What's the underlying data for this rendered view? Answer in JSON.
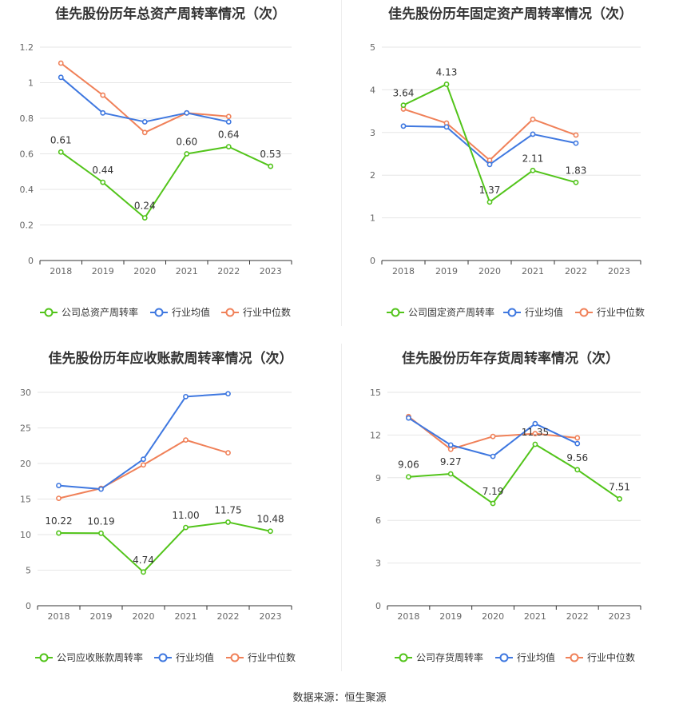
{
  "source": "数据来源：恒生聚源",
  "colors": {
    "company": "#52c41a",
    "avg": "#3f78e0",
    "median": "#f08159",
    "grid": "#e6e6e6",
    "axis": "#333333",
    "tick": "#666666"
  },
  "legend_labels": {
    "avg": "行业均值",
    "median": "行业中位数"
  },
  "chart_data": [
    {
      "type": "line",
      "title": "佳先股份历年总资产周转率情况（次）",
      "categories": [
        "2018",
        "2019",
        "2020",
        "2021",
        "2022",
        "2023"
      ],
      "ylim": [
        0,
        1.2
      ],
      "yticks": [
        "0",
        "0.2",
        "0.4",
        "0.6",
        "0.8",
        "1",
        "1.2"
      ],
      "series": [
        {
          "name": "公司总资产周转率",
          "values": [
            0.61,
            0.44,
            0.24,
            0.6,
            0.64,
            0.53
          ],
          "labels": [
            "0.61",
            "0.44",
            "0.24",
            "0.60",
            "0.64",
            "0.53"
          ]
        },
        {
          "name": "行业均值",
          "values": [
            1.03,
            0.83,
            0.78,
            0.83,
            0.78,
            null
          ]
        },
        {
          "name": "行业中位数",
          "values": [
            1.11,
            0.93,
            0.72,
            0.83,
            0.81,
            null
          ]
        }
      ]
    },
    {
      "type": "line",
      "title": "佳先股份历年固定资产周转率情况（次）",
      "categories": [
        "2018",
        "2019",
        "2020",
        "2021",
        "2022",
        "2023"
      ],
      "ylim": [
        0,
        5
      ],
      "yticks": [
        "0",
        "1",
        "2",
        "3",
        "4",
        "5"
      ],
      "series": [
        {
          "name": "公司固定资产周转率",
          "values": [
            3.64,
            4.13,
            1.37,
            2.11,
            1.83,
            null
          ],
          "labels": [
            "3.64",
            "4.13",
            "1.37",
            "2.11",
            "1.83",
            ""
          ]
        },
        {
          "name": "行业均值",
          "values": [
            3.15,
            3.13,
            2.25,
            2.96,
            2.75,
            null
          ]
        },
        {
          "name": "行业中位数",
          "values": [
            3.55,
            3.22,
            2.35,
            3.31,
            2.94,
            null
          ]
        }
      ]
    },
    {
      "type": "line",
      "title": "佳先股份历年应收账款周转率情况（次）",
      "categories": [
        "2018",
        "2019",
        "2020",
        "2021",
        "2022",
        "2023"
      ],
      "ylim": [
        0,
        30
      ],
      "yticks": [
        "0",
        "5",
        "10",
        "15",
        "20",
        "25",
        "30"
      ],
      "series": [
        {
          "name": "公司应收账款周转率",
          "values": [
            10.22,
            10.19,
            4.74,
            11.0,
            11.75,
            10.48
          ],
          "labels": [
            "10.22",
            "10.19",
            "4.74",
            "11.00",
            "11.75",
            "10.48"
          ]
        },
        {
          "name": "行业均值",
          "values": [
            16.9,
            16.4,
            20.6,
            29.4,
            29.8,
            null
          ]
        },
        {
          "name": "行业中位数",
          "values": [
            15.1,
            16.5,
            19.8,
            23.3,
            21.5,
            null
          ]
        }
      ]
    },
    {
      "type": "line",
      "title": "佳先股份历年存货周转率情况（次）",
      "categories": [
        "2018",
        "2019",
        "2020",
        "2021",
        "2022",
        "2023"
      ],
      "ylim": [
        0,
        15
      ],
      "yticks": [
        "0",
        "3",
        "6",
        "9",
        "12",
        "15"
      ],
      "series": [
        {
          "name": "公司存货周转率",
          "values": [
            9.06,
            9.27,
            7.19,
            11.35,
            9.56,
            7.51
          ],
          "labels": [
            "9.06",
            "9.27",
            "7.19",
            "11.35",
            "9.56",
            "7.51"
          ]
        },
        {
          "name": "行业均值",
          "values": [
            13.2,
            11.3,
            10.5,
            12.8,
            11.4,
            null
          ]
        },
        {
          "name": "行业中位数",
          "values": [
            13.3,
            11.0,
            11.9,
            12.1,
            11.8,
            null
          ]
        }
      ]
    }
  ]
}
